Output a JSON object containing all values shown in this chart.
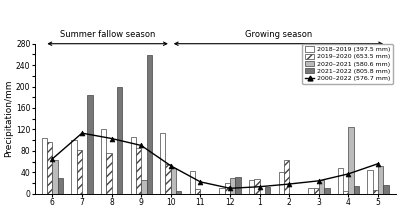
{
  "months": [
    "6",
    "7",
    "8",
    "9",
    "10",
    "11",
    "12",
    "1",
    "2",
    "3",
    "4",
    "5"
  ],
  "bar_2018_2019": [
    104,
    100,
    120,
    105,
    114,
    42,
    10,
    25,
    40,
    10,
    48,
    45
  ],
  "bar_2019_2020": [
    96,
    82,
    75,
    85,
    55,
    8,
    20,
    27,
    63,
    10,
    5,
    7
  ],
  "bar_2020_2021": [
    62,
    0,
    0,
    25,
    48,
    0,
    30,
    0,
    0,
    25,
    125,
    52
  ],
  "bar_2021_2022": [
    30,
    185,
    200,
    258,
    5,
    0,
    32,
    12,
    0,
    10,
    15,
    17
  ],
  "line_2000_2022": [
    65,
    113,
    103,
    90,
    52,
    22,
    10,
    13,
    18,
    24,
    37,
    56
  ],
  "ylabel": "Precipitation/mm",
  "ylim": [
    0,
    280
  ],
  "yticks": [
    0,
    20,
    40,
    60,
    80,
    100,
    120,
    140,
    160,
    180,
    200,
    220,
    240,
    260,
    280
  ],
  "ytick_labels": [
    "0",
    "",
    "40",
    "",
    "80",
    "",
    "120",
    "",
    "160",
    "",
    "200",
    "",
    "240",
    "",
    "280"
  ],
  "color_2018_2019": "#ffffff",
  "color_2019_2020": "#ffffff",
  "color_2020_2021": "#bbbbbb",
  "color_2021_2022": "#777777",
  "hatch_2019_2020": "////",
  "legend_labels": [
    "2018–2019 (397.5 mm)",
    "2019–2020 (653.5 mm)",
    "2020–2021 (580.6 mm)",
    "2021–2022 (805.8 mm)",
    "2000–2022 (576.7 mm)"
  ],
  "summer_fallow_label": "Summer fallow season",
  "growing_label": "Growing season",
  "bar_width": 0.18,
  "edge_color": "#444444",
  "line_color": "#000000",
  "figsize": [
    4.0,
    2.11
  ],
  "dpi": 100
}
